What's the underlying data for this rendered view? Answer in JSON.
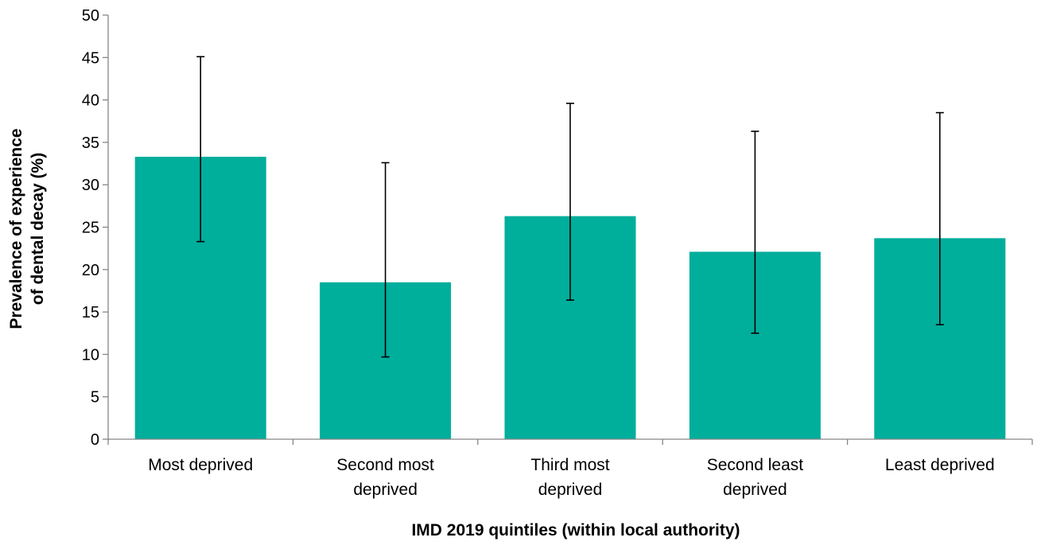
{
  "chart_data": {
    "type": "bar",
    "title": "",
    "xlabel": "IMD 2019 quintiles (within local authority)",
    "ylabel_lines": [
      "Prevalence of experience",
      "of dental decay (%)"
    ],
    "categories": [
      [
        "Most deprived"
      ],
      [
        "Second most",
        "deprived"
      ],
      [
        "Third most",
        "deprived"
      ],
      [
        "Second least",
        "deprived"
      ],
      [
        "Least deprived"
      ]
    ],
    "values": [
      33.3,
      18.5,
      26.3,
      22.1,
      23.7
    ],
    "error_low": [
      23.3,
      9.7,
      16.4,
      12.5,
      13.5
    ],
    "error_high": [
      45.1,
      32.6,
      39.6,
      36.3,
      38.5
    ],
    "ylim": [
      0,
      50
    ],
    "yticks": [
      0,
      5,
      10,
      15,
      20,
      25,
      30,
      35,
      40,
      45,
      50
    ],
    "grid": false,
    "legend": "none",
    "colors": {
      "bar": "#00AE9C",
      "axis": "#868686",
      "error_bar": "#000000"
    }
  }
}
